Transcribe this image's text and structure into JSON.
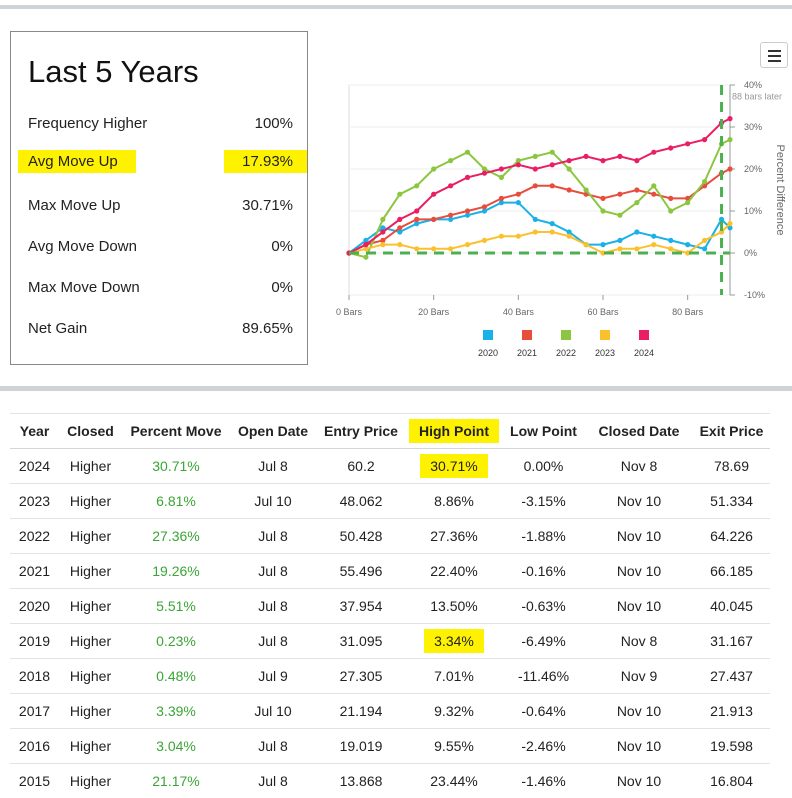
{
  "summary": {
    "title": "Last 5 Years",
    "rows": [
      {
        "label": "Frequency Higher",
        "value": "100%"
      },
      {
        "label": "Avg Move Up",
        "value": "17.93%"
      },
      {
        "label": "Max Move Up",
        "value": "30.71%"
      },
      {
        "label": "Avg Move Down",
        "value": "0%"
      },
      {
        "label": "Max Move Down",
        "value": "0%"
      },
      {
        "label": "Net Gain",
        "value": "89.65%"
      }
    ]
  },
  "menu": {
    "icon": "hamburger-menu-icon"
  },
  "colors": {
    "highlight": "#fff200",
    "positive": "#3aa635",
    "y2020": "#1ab1e8",
    "y2021": "#e84c3d",
    "y2022": "#8cc63f",
    "y2023": "#fbc02d",
    "y2024": "#e91e63",
    "guide": "#4caf50"
  },
  "chart_data": {
    "type": "line",
    "ylabel": "Percent Difference",
    "annotation": "88 bars later",
    "x_ticks": [
      "0 Bars",
      "20 Bars",
      "40 Bars",
      "60 Bars",
      "80 Bars"
    ],
    "y_ticks": [
      "40%",
      "30%",
      "20%",
      "10%",
      "0%",
      "-10%"
    ],
    "xlim": [
      0,
      90
    ],
    "ylim": [
      -10,
      40
    ],
    "series": [
      {
        "name": "2020",
        "x": [
          0,
          4,
          8,
          12,
          16,
          20,
          24,
          28,
          32,
          36,
          40,
          44,
          48,
          52,
          56,
          60,
          64,
          68,
          72,
          76,
          80,
          84,
          88,
          90
        ],
        "values": [
          0,
          3,
          6,
          5,
          7,
          8,
          8,
          9,
          10,
          12,
          12,
          8,
          7,
          5,
          2,
          2,
          3,
          5,
          4,
          3,
          2,
          1,
          8,
          6
        ]
      },
      {
        "name": "2021",
        "x": [
          0,
          4,
          8,
          12,
          16,
          20,
          24,
          28,
          32,
          36,
          40,
          44,
          48,
          52,
          56,
          60,
          64,
          68,
          72,
          76,
          80,
          84,
          88,
          90
        ],
        "values": [
          0,
          2,
          3,
          6,
          8,
          8,
          9,
          10,
          11,
          13,
          14,
          16,
          16,
          15,
          14,
          13,
          14,
          15,
          14,
          13,
          13,
          16,
          19,
          20
        ]
      },
      {
        "name": "2022",
        "x": [
          0,
          4,
          8,
          12,
          16,
          20,
          24,
          28,
          32,
          36,
          40,
          44,
          48,
          52,
          56,
          60,
          64,
          68,
          72,
          76,
          80,
          84,
          88,
          90
        ],
        "values": [
          0,
          -1,
          8,
          14,
          16,
          20,
          22,
          24,
          20,
          18,
          22,
          23,
          24,
          20,
          15,
          10,
          9,
          12,
          16,
          10,
          12,
          17,
          26,
          27
        ]
      },
      {
        "name": "2023",
        "x": [
          0,
          4,
          8,
          12,
          16,
          20,
          24,
          28,
          32,
          36,
          40,
          44,
          48,
          52,
          56,
          60,
          64,
          68,
          72,
          76,
          80,
          84,
          88,
          90
        ],
        "values": [
          0,
          1,
          2,
          2,
          1,
          1,
          1,
          2,
          3,
          4,
          4,
          5,
          5,
          4,
          2,
          0,
          1,
          1,
          2,
          1,
          0,
          3,
          5,
          7
        ]
      },
      {
        "name": "2024",
        "x": [
          0,
          4,
          8,
          12,
          16,
          20,
          24,
          28,
          32,
          36,
          40,
          44,
          48,
          52,
          56,
          60,
          64,
          68,
          72,
          76,
          80,
          84,
          88,
          90
        ],
        "values": [
          0,
          2,
          5,
          8,
          10,
          14,
          16,
          18,
          19,
          20,
          21,
          20,
          21,
          22,
          23,
          22,
          23,
          22,
          24,
          25,
          26,
          27,
          31,
          32
        ]
      }
    ]
  },
  "table": {
    "headers": [
      "Year",
      "Closed",
      "Percent Move",
      "Open Date",
      "Entry Price",
      "High Point",
      "Low Point",
      "Closed Date",
      "Exit Price"
    ],
    "rows": [
      [
        "2024",
        "Higher",
        "30.71%",
        "Jul 8",
        "60.2",
        "30.71%",
        "0.00%",
        "Nov 8",
        "78.69"
      ],
      [
        "2023",
        "Higher",
        "6.81%",
        "Jul 10",
        "48.062",
        "8.86%",
        "-3.15%",
        "Nov 10",
        "51.334"
      ],
      [
        "2022",
        "Higher",
        "27.36%",
        "Jul 8",
        "50.428",
        "27.36%",
        "-1.88%",
        "Nov 10",
        "64.226"
      ],
      [
        "2021",
        "Higher",
        "19.26%",
        "Jul 8",
        "55.496",
        "22.40%",
        "-0.16%",
        "Nov 10",
        "66.185"
      ],
      [
        "2020",
        "Higher",
        "5.51%",
        "Jul 8",
        "37.954",
        "13.50%",
        "-0.63%",
        "Nov 10",
        "40.045"
      ],
      [
        "2019",
        "Higher",
        "0.23%",
        "Jul 8",
        "31.095",
        "3.34%",
        "-6.49%",
        "Nov 8",
        "31.167"
      ],
      [
        "2018",
        "Higher",
        "0.48%",
        "Jul 9",
        "27.305",
        "7.01%",
        "-11.46%",
        "Nov 9",
        "27.437"
      ],
      [
        "2017",
        "Higher",
        "3.39%",
        "Jul 10",
        "21.194",
        "9.32%",
        "-0.64%",
        "Nov 10",
        "21.913"
      ],
      [
        "2016",
        "Higher",
        "3.04%",
        "Jul 8",
        "19.019",
        "9.55%",
        "-2.46%",
        "Nov 10",
        "19.598"
      ],
      [
        "2015",
        "Higher",
        "21.17%",
        "Jul 8",
        "13.868",
        "23.44%",
        "-1.46%",
        "Nov 10",
        "16.804"
      ]
    ]
  }
}
